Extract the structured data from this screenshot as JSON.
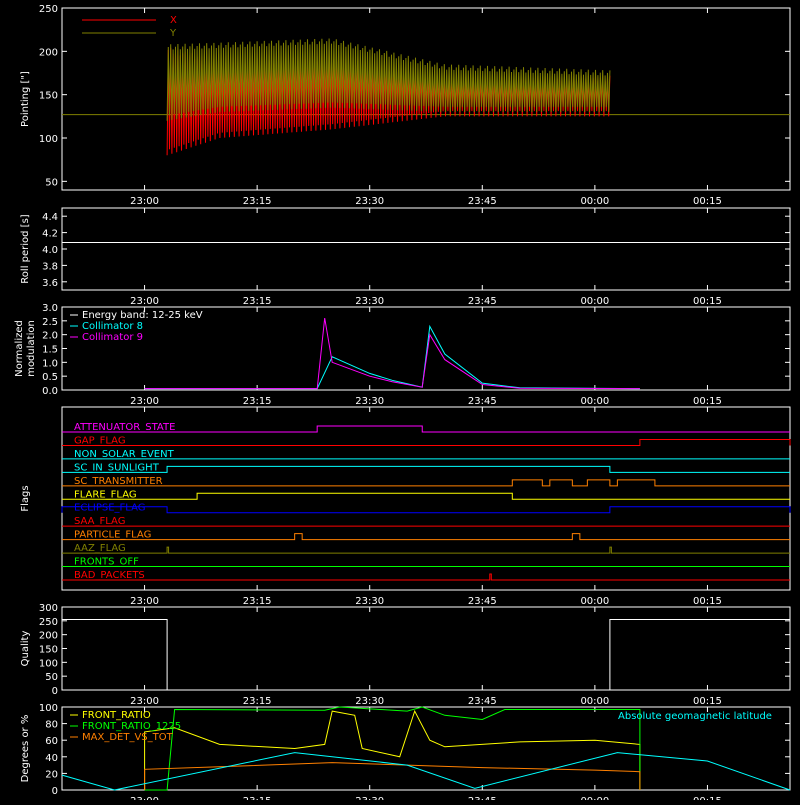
{
  "chart_data": [
    {
      "panel": "pointing",
      "type": "line",
      "ylabel": "Pointing [\"]",
      "ylim": [
        40,
        250
      ],
      "yticks": [
        "50",
        "100",
        "150",
        "200",
        "250"
      ],
      "xticks": [
        "23:00",
        "23:15",
        "23:30",
        "23:45",
        "00:00",
        "00:15"
      ],
      "legend_position": "top-left",
      "series": [
        {
          "name": "X",
          "color": "#ff0000",
          "envelope": {
            "t": [
              "23:03",
              "23:10",
              "23:25",
              "23:40",
              "00:02"
            ],
            "upper": [
              205,
              190,
              195,
              170,
              172
            ],
            "lower": [
              80,
              100,
              110,
              125,
              125
            ]
          }
        },
        {
          "name": "Y",
          "color": "#808000",
          "envelope": {
            "t": [
              "23:03",
              "23:10",
              "23:25",
              "23:40",
              "00:02"
            ],
            "upper": [
              208,
              210,
              215,
              185,
              178
            ],
            "lower": [
              120,
              130,
              135,
              130,
              130
            ]
          }
        }
      ],
      "baseline": 127,
      "baseline_color": "#808000"
    },
    {
      "panel": "roll",
      "type": "line",
      "ylabel": "Roll period [s]",
      "ylim": [
        3.5,
        4.5
      ],
      "yticks": [
        "3.6",
        "3.8",
        "4.0",
        "4.2",
        "4.4"
      ],
      "xticks": [
        "23:00",
        "23:15",
        "23:30",
        "23:45",
        "00:00",
        "00:15"
      ],
      "series": [
        {
          "values_constant": 4.08,
          "color": "#ffffff"
        }
      ]
    },
    {
      "panel": "modulation",
      "type": "line",
      "ylabel": "Normalized modulation",
      "ylim": [
        0,
        3.0
      ],
      "yticks": [
        "0.0",
        "0.5",
        "1.0",
        "1.5",
        "2.0",
        "2.5",
        "3.0"
      ],
      "xticks": [
        "23:00",
        "23:15",
        "23:30",
        "23:45",
        "00:00",
        "00:15"
      ],
      "legend": [
        "Energy band: 12-25 keV",
        "Collimator 8",
        "Collimator 9"
      ],
      "legend_colors": [
        "#ffffff",
        "#00ffff",
        "#ff00ff"
      ],
      "series": [
        {
          "name": "Collimator 8",
          "color": "#00ffff",
          "points": [
            [
              "23:00",
              0.05
            ],
            [
              "23:23",
              0.05
            ],
            [
              "23:25",
              1.2
            ],
            [
              "23:30",
              0.6
            ],
            [
              "23:33",
              0.35
            ],
            [
              "23:37",
              0.1
            ],
            [
              "23:38",
              2.3
            ],
            [
              "23:40",
              1.3
            ],
            [
              "23:45",
              0.25
            ],
            [
              "23:50",
              0.08
            ],
            [
              "00:06",
              0.05
            ]
          ]
        },
        {
          "name": "Collimator 9",
          "color": "#ff00ff",
          "points": [
            [
              "23:00",
              0.05
            ],
            [
              "23:23",
              0.05
            ],
            [
              "23:24",
              2.6
            ],
            [
              "23:25",
              1.0
            ],
            [
              "23:30",
              0.5
            ],
            [
              "23:33",
              0.3
            ],
            [
              "23:37",
              0.1
            ],
            [
              "23:38",
              2.0
            ],
            [
              "23:40",
              1.1
            ],
            [
              "23:45",
              0.2
            ],
            [
              "23:50",
              0.06
            ],
            [
              "00:06",
              0.05
            ]
          ]
        }
      ]
    },
    {
      "panel": "flags",
      "type": "table",
      "ylabel": "Flags",
      "xticks": [
        "23:00",
        "23:15",
        "23:30",
        "23:45",
        "00:00",
        "00:15"
      ],
      "flags": [
        {
          "name": "ATTENUATOR_STATE",
          "color": "#ff00ff",
          "on": [
            [
              "23:23",
              "23:37"
            ]
          ]
        },
        {
          "name": "GAP_FLAG",
          "color": "#ff0000",
          "on": [
            [
              "00:06",
              "00:26"
            ]
          ]
        },
        {
          "name": "NON_SOLAR_EVENT",
          "color": "#00ffff",
          "on": []
        },
        {
          "name": "SC_IN_SUNLIGHT",
          "color": "#00ffff",
          "on": [
            [
              "23:03",
              "00:02"
            ]
          ]
        },
        {
          "name": "SC_TRANSMITTER",
          "color": "#ff8000",
          "on": [
            [
              "23:49",
              "23:53"
            ],
            [
              "23:54",
              "23:57"
            ],
            [
              "23:59",
              "00:02"
            ],
            [
              "00:03",
              "00:08"
            ]
          ]
        },
        {
          "name": "FLARE_FLAG",
          "color": "#ffff00",
          "on": [
            [
              "23:07",
              "23:49"
            ]
          ]
        },
        {
          "name": "ECLIPSE_FLAG",
          "color": "#0000ff",
          "on": [
            [
              "22:49",
              "23:03"
            ],
            [
              "00:02",
              "00:26"
            ]
          ]
        },
        {
          "name": "SAA_FLAG",
          "color": "#ff0000",
          "on": []
        },
        {
          "name": "PARTICLE_FLAG",
          "color": "#ff8000",
          "on": [
            [
              "23:20",
              "23:21"
            ],
            [
              "23:57",
              "23:58"
            ]
          ]
        },
        {
          "name": "AAZ_FLAG",
          "color": "#808000",
          "on": [
            [
              "23:03",
              "23:03"
            ],
            [
              "00:02",
              "00:02"
            ]
          ]
        },
        {
          "name": "FRONTS_OFF",
          "color": "#00ff00",
          "on": []
        },
        {
          "name": "BAD_PACKETS",
          "color": "#ff0000",
          "on": [
            [
              "23:46",
              "23:46"
            ]
          ]
        }
      ]
    },
    {
      "panel": "quality",
      "type": "line",
      "ylabel": "Quality",
      "ylim": [
        0,
        300
      ],
      "yticks": [
        "0",
        "50",
        "100",
        "150",
        "200",
        "250",
        "300"
      ],
      "xticks": [
        "23:00",
        "23:15",
        "23:30",
        "23:45",
        "00:00",
        "00:15"
      ],
      "series": [
        {
          "color": "#ffffff",
          "points": [
            [
              "22:49",
              255
            ],
            [
              "23:03",
              255
            ],
            [
              "23:03",
              0
            ],
            [
              "00:02",
              0
            ],
            [
              "00:02",
              255
            ],
            [
              "00:26",
              255
            ]
          ]
        }
      ]
    },
    {
      "panel": "ratios",
      "type": "line",
      "ylabel": "Degrees or %",
      "ylim": [
        0,
        100
      ],
      "yticks": [
        "0",
        "20",
        "40",
        "60",
        "80",
        "100"
      ],
      "xticks": [
        "23:00",
        "23:15",
        "23:30",
        "23:45",
        "00:00",
        "00:15"
      ],
      "legend": [
        "FRONT_RATIO",
        "FRONT_RATIO_1225",
        "MAX_DET_VS_TOT"
      ],
      "legend_colors": [
        "#ffff00",
        "#00ff00",
        "#ff8000"
      ],
      "annotation": "Absolute geomagnetic latitude",
      "annotation_color": "#00ffff",
      "series": [
        {
          "name": "FRONT_RATIO",
          "color": "#ffff00",
          "points": [
            [
              "23:00",
              0
            ],
            [
              "23:00",
              70
            ],
            [
              "23:04",
              75
            ],
            [
              "23:10",
              55
            ],
            [
              "23:20",
              50
            ],
            [
              "23:24",
              55
            ],
            [
              "23:25",
              95
            ],
            [
              "23:28",
              90
            ],
            [
              "23:29",
              50
            ],
            [
              "23:34",
              40
            ],
            [
              "23:36",
              95
            ],
            [
              "23:38",
              60
            ],
            [
              "23:40",
              52
            ],
            [
              "23:50",
              58
            ],
            [
              "00:00",
              60
            ],
            [
              "00:06",
              55
            ],
            [
              "00:06",
              0
            ]
          ]
        },
        {
          "name": "FRONT_RATIO_1225",
          "color": "#00ff00",
          "points": [
            [
              "23:00",
              0
            ],
            [
              "23:03",
              0
            ],
            [
              "23:04",
              97
            ],
            [
              "23:24",
              96
            ],
            [
              "23:26",
              100
            ],
            [
              "23:35",
              95
            ],
            [
              "23:37",
              100
            ],
            [
              "23:40",
              90
            ],
            [
              "23:45",
              85
            ],
            [
              "23:48",
              97
            ],
            [
              "00:06",
              97
            ],
            [
              "00:06",
              0
            ]
          ]
        },
        {
          "name": "MAX_DET_VS_TOT",
          "color": "#ff8000",
          "points": [
            [
              "23:00",
              0
            ],
            [
              "23:00",
              25
            ],
            [
              "23:10",
              28
            ],
            [
              "23:25",
              33
            ],
            [
              "23:35",
              30
            ],
            [
              "23:45",
              27
            ],
            [
              "00:00",
              24
            ],
            [
              "00:06",
              22
            ],
            [
              "00:06",
              0
            ]
          ]
        },
        {
          "name": "Absolute geomagnetic latitude",
          "color": "#00ffff",
          "points": [
            [
              "22:49",
              18
            ],
            [
              "22:56",
              0
            ],
            [
              "23:20",
              45
            ],
            [
              "23:35",
              30
            ],
            [
              "23:44",
              2
            ],
            [
              "00:03",
              45
            ],
            [
              "00:15",
              35
            ],
            [
              "00:26",
              0
            ]
          ]
        }
      ]
    }
  ]
}
